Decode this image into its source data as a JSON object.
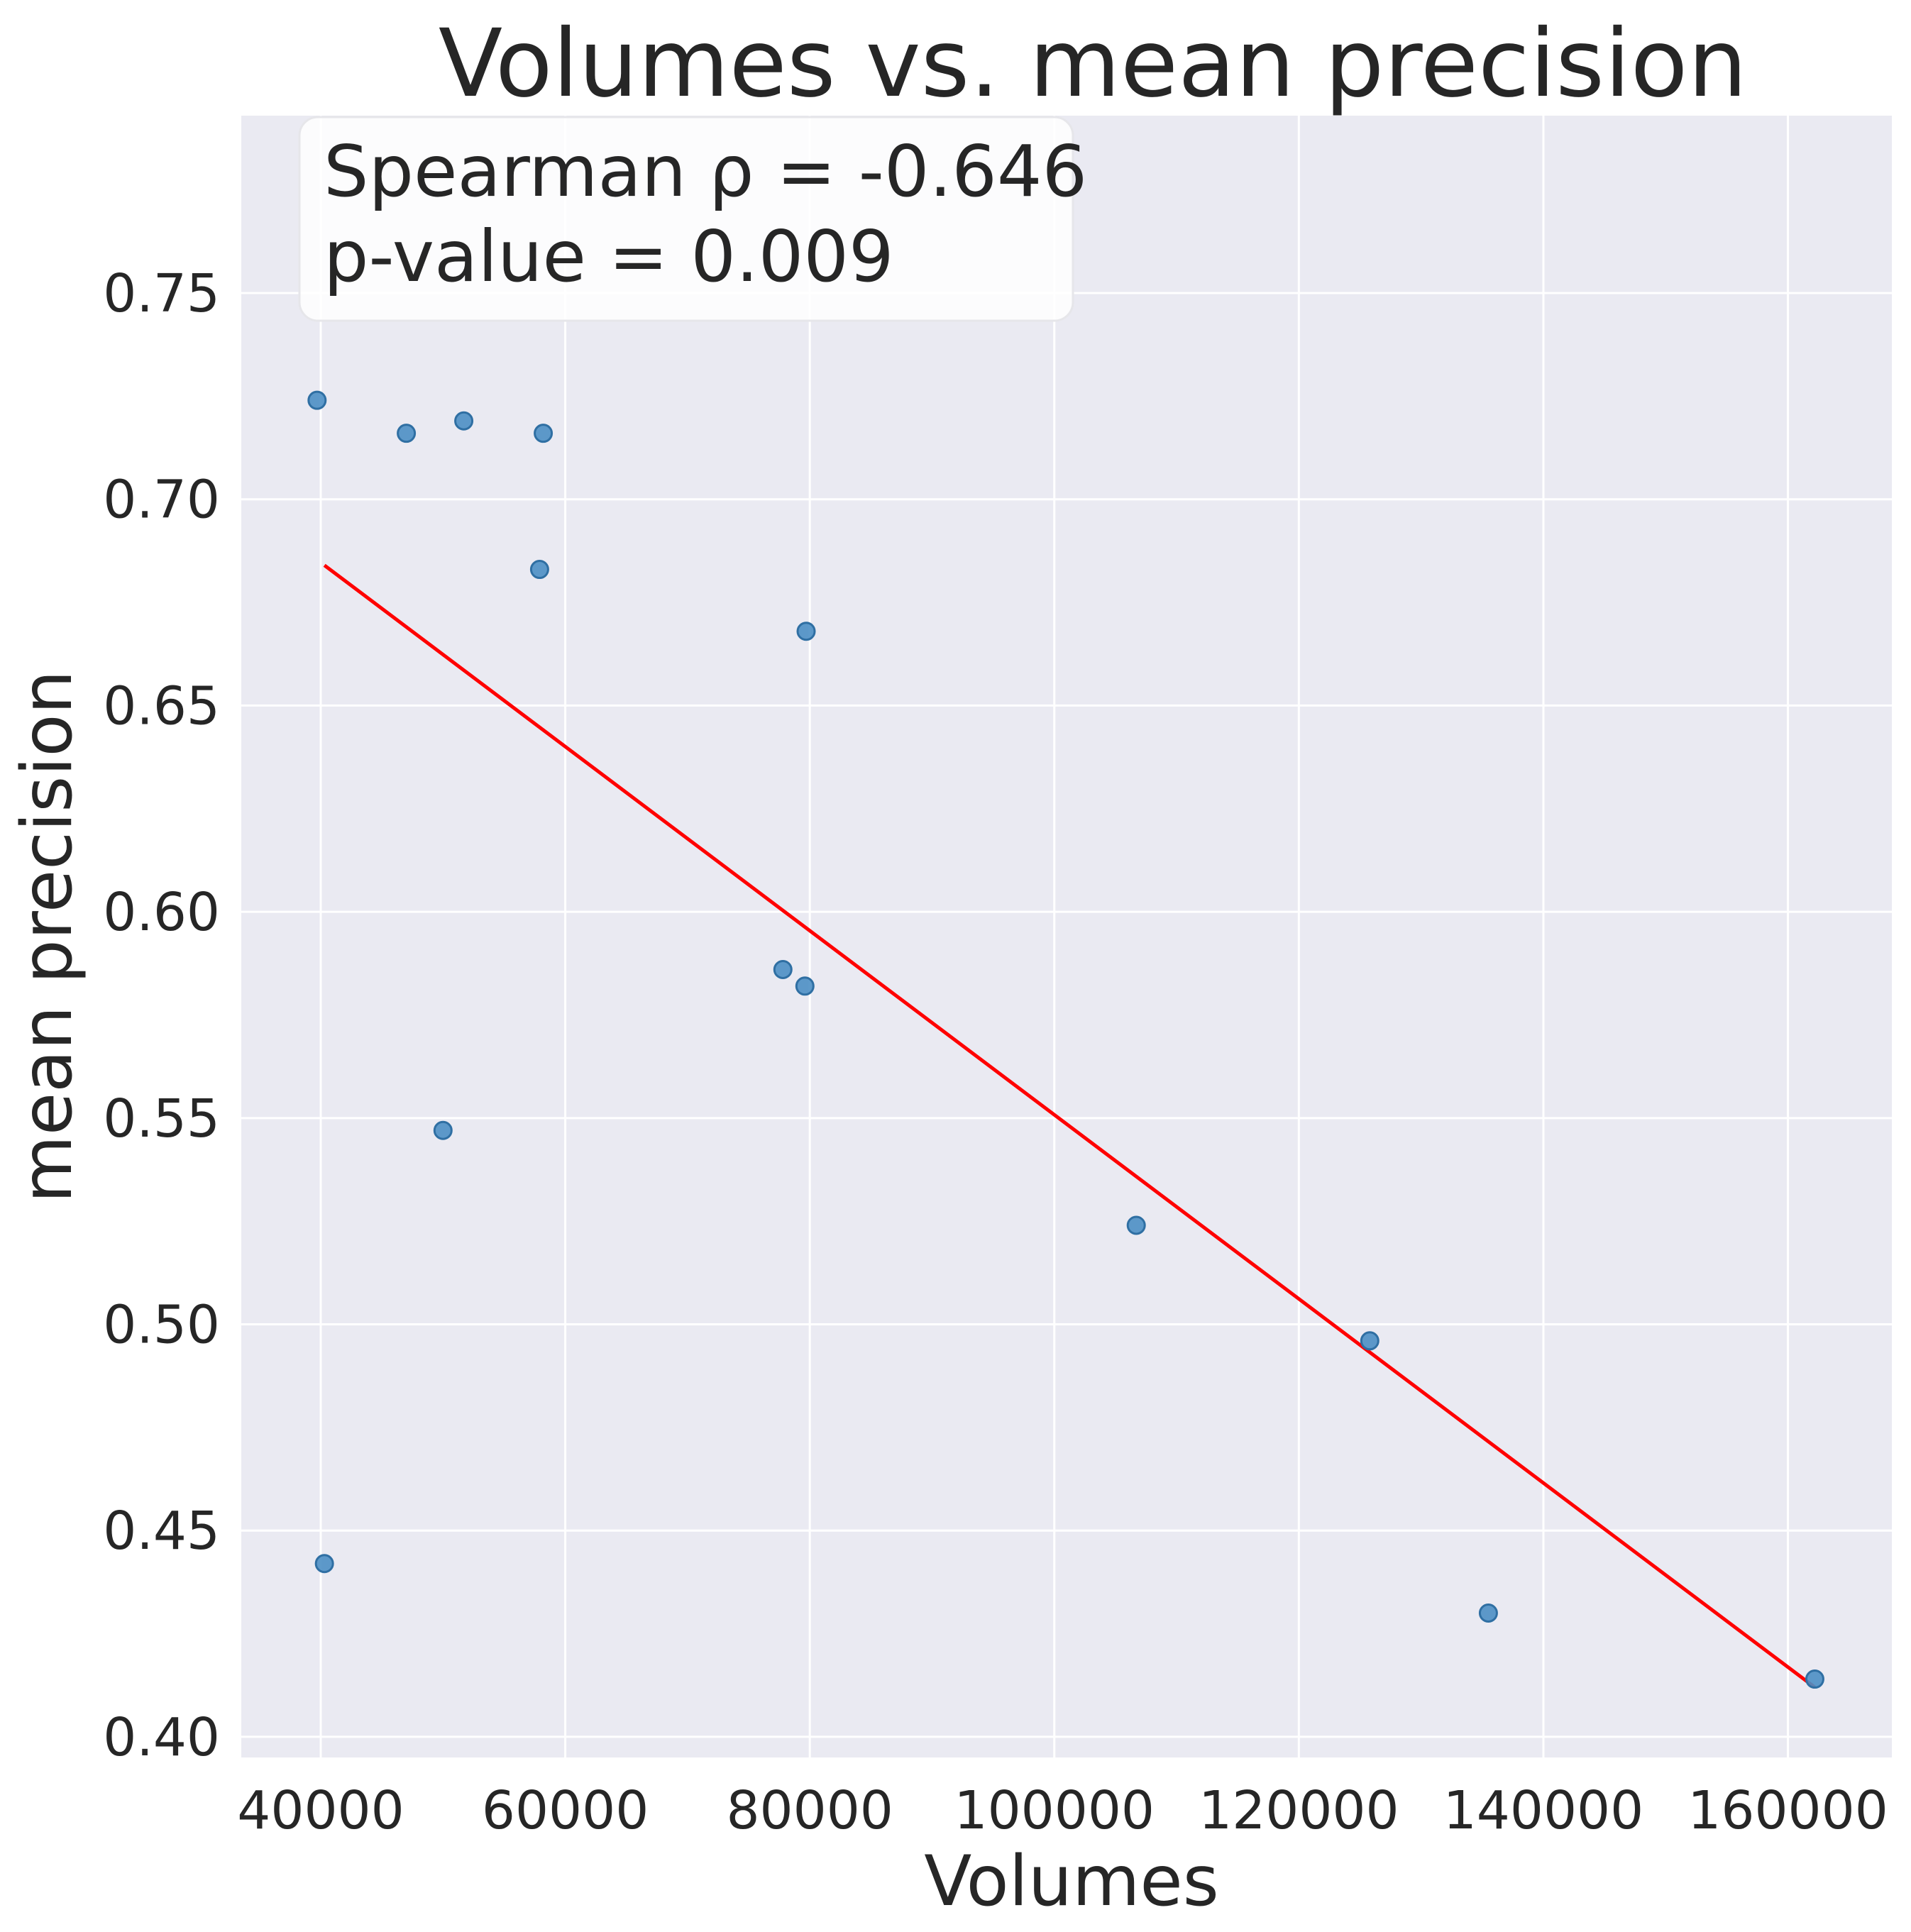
{
  "chart_data": {
    "type": "scatter",
    "title": "Volumes vs. mean precision",
    "xlabel": "Volumes",
    "ylabel": "mean precision",
    "xlim": [
      33500,
      168500
    ],
    "ylim": [
      0.395,
      0.793
    ],
    "xticks": [
      40000,
      60000,
      80000,
      100000,
      120000,
      140000,
      160000
    ],
    "xtick_labels": [
      "40000",
      "60000",
      "80000",
      "100000",
      "120000",
      "140000",
      "160000"
    ],
    "yticks": [
      0.4,
      0.45,
      0.5,
      0.55,
      0.6,
      0.65,
      0.7,
      0.75
    ],
    "ytick_labels": [
      "0.40",
      "0.45",
      "0.50",
      "0.55",
      "0.60",
      "0.65",
      "0.70",
      "0.75"
    ],
    "grid": true,
    "colors": {
      "background": "#eaeaf2",
      "grid": "#ffffff",
      "points": "#4c8fc4",
      "point_edge": "#2f6fa3",
      "fit_line": "#ff0000"
    },
    "points": [
      {
        "x": 39700,
        "y": 0.724
      },
      {
        "x": 47000,
        "y": 0.716
      },
      {
        "x": 51700,
        "y": 0.719
      },
      {
        "x": 58200,
        "y": 0.716
      },
      {
        "x": 57900,
        "y": 0.683
      },
      {
        "x": 79700,
        "y": 0.668
      },
      {
        "x": 77800,
        "y": 0.586
      },
      {
        "x": 79600,
        "y": 0.582
      },
      {
        "x": 50000,
        "y": 0.547
      },
      {
        "x": 40300,
        "y": 0.442
      },
      {
        "x": 106700,
        "y": 0.524
      },
      {
        "x": 125800,
        "y": 0.496
      },
      {
        "x": 135500,
        "y": 0.43
      },
      {
        "x": 162200,
        "y": 0.414
      }
    ],
    "fit_line": [
      {
        "x": 40300,
        "y": 0.684
      },
      {
        "x": 162200,
        "y": 0.412
      }
    ],
    "annotation": {
      "line1": "Spearman ρ = -0.646",
      "line2": "p-value = 0.009"
    }
  }
}
